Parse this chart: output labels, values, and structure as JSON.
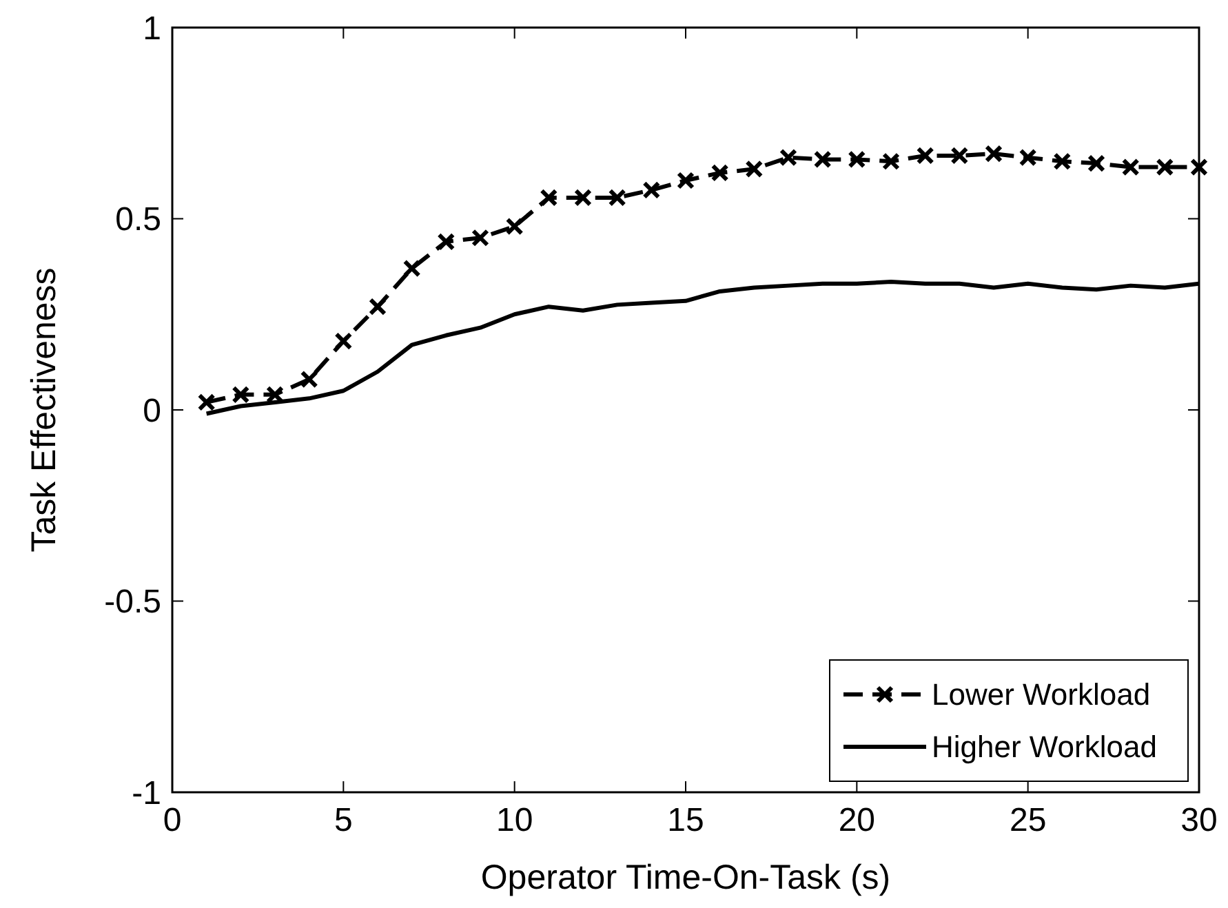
{
  "chart_data": {
    "type": "line",
    "xlabel": "Operator Time-On-Task (s)",
    "ylabel": "Task Effectiveness",
    "x": [
      1,
      2,
      3,
      4,
      5,
      6,
      7,
      8,
      9,
      10,
      11,
      12,
      13,
      14,
      15,
      16,
      17,
      18,
      19,
      20,
      21,
      22,
      23,
      24,
      25,
      26,
      27,
      28,
      29,
      30
    ],
    "series": [
      {
        "name": "Lower Workload",
        "color": "#000000",
        "marker": "cross",
        "line_style": "dashed",
        "values": [
          0.02,
          0.04,
          0.04,
          0.08,
          0.18,
          0.27,
          0.37,
          0.44,
          0.45,
          0.48,
          0.555,
          0.555,
          0.555,
          0.575,
          0.6,
          0.62,
          0.63,
          0.66,
          0.655,
          0.655,
          0.65,
          0.665,
          0.665,
          0.67,
          0.66,
          0.65,
          0.645,
          0.635,
          0.635,
          0.635
        ]
      },
      {
        "name": "Higher Workload",
        "color": "#000000",
        "marker": "none",
        "line_style": "solid",
        "values": [
          -0.01,
          0.01,
          0.02,
          0.03,
          0.05,
          0.1,
          0.17,
          0.195,
          0.215,
          0.25,
          0.27,
          0.26,
          0.275,
          0.28,
          0.285,
          0.31,
          0.32,
          0.325,
          0.33,
          0.33,
          0.335,
          0.33,
          0.33,
          0.32,
          0.33,
          0.32,
          0.315,
          0.325,
          0.32,
          0.33
        ]
      }
    ],
    "xlim": [
      0,
      30
    ],
    "xticks": [
      0,
      5,
      10,
      15,
      20,
      25,
      30
    ],
    "ylim": [
      -1,
      1
    ],
    "yticks": [
      -1,
      -0.5,
      0,
      0.5,
      1
    ],
    "grid": false,
    "legend": "bottom right"
  }
}
